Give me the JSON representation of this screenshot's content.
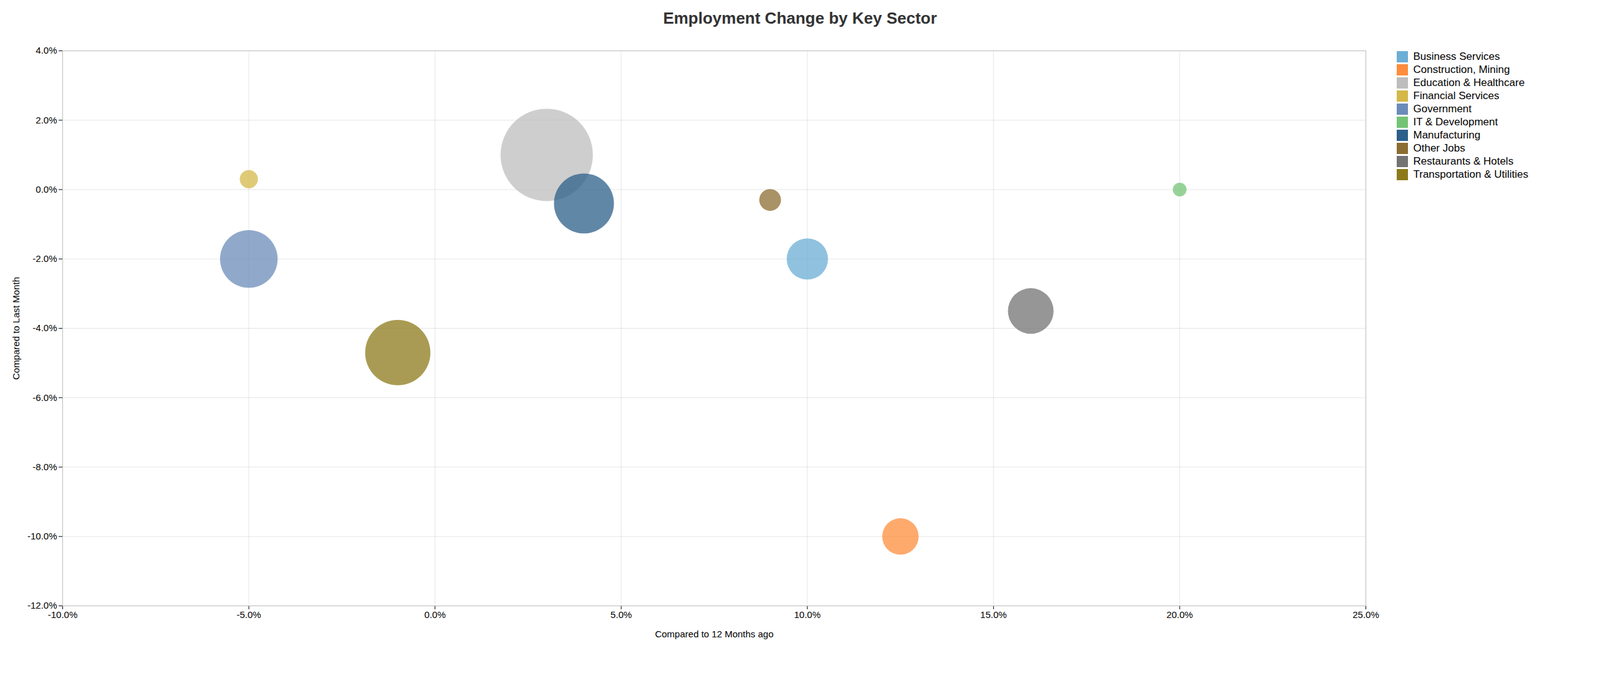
{
  "chart_data": {
    "type": "scatter",
    "title": "Employment Change by Key Sector",
    "xlabel": "Compared to 12 Months ago",
    "ylabel": "Compared to Last Month",
    "xlim": [
      -0.1,
      0.25
    ],
    "ylim": [
      -0.12,
      0.04
    ],
    "xticks": [
      {
        "value": -0.1,
        "label": "-10.0%"
      },
      {
        "value": -0.05,
        "label": "-5.0%"
      },
      {
        "value": 0.0,
        "label": "0.0%"
      },
      {
        "value": 0.05,
        "label": "5.0%"
      },
      {
        "value": 0.1,
        "label": "10.0%"
      },
      {
        "value": 0.15,
        "label": "15.0%"
      },
      {
        "value": 0.2,
        "label": "20.0%"
      },
      {
        "value": 0.25,
        "label": "25.0%"
      }
    ],
    "yticks": [
      {
        "value": -0.12,
        "label": "-12.0%"
      },
      {
        "value": -0.1,
        "label": "-10.0%"
      },
      {
        "value": -0.08,
        "label": "-8.0%"
      },
      {
        "value": -0.06,
        "label": "-6.0%"
      },
      {
        "value": -0.04,
        "label": "-4.0%"
      },
      {
        "value": -0.02,
        "label": "-2.0%"
      },
      {
        "value": 0.0,
        "label": "0.0%"
      },
      {
        "value": 0.02,
        "label": "2.0%"
      },
      {
        "value": 0.04,
        "label": "4.0%"
      }
    ],
    "grid": true,
    "legend": "right",
    "series": [
      {
        "name": "Business Services",
        "color": "#6baed6",
        "x": [
          0.1
        ],
        "y": [
          -0.02
        ],
        "size": [
          1800
        ]
      },
      {
        "name": "Construction, Mining",
        "color": "#fd8d3c",
        "x": [
          0.125
        ],
        "y": [
          -0.1
        ],
        "size": [
          1400
        ]
      },
      {
        "name": "Education & Healthcare",
        "color": "#bdbdbd",
        "x": [
          0.03
        ],
        "y": [
          0.01
        ],
        "size": [
          9000
        ]
      },
      {
        "name": "Financial Services",
        "color": "#d4b84a",
        "x": [
          -0.05
        ],
        "y": [
          0.003
        ],
        "size": [
          350
        ]
      },
      {
        "name": "Government",
        "color": "#6b8cba",
        "x": [
          -0.05
        ],
        "y": [
          -0.02
        ],
        "size": [
          3500
        ]
      },
      {
        "name": "IT & Development",
        "color": "#74c476",
        "x": [
          0.2
        ],
        "y": [
          0.0
        ],
        "size": [
          200
        ]
      },
      {
        "name": "Manufacturing",
        "color": "#2c5f8a",
        "x": [
          0.04
        ],
        "y": [
          -0.004
        ],
        "size": [
          3800
        ]
      },
      {
        "name": "Other Jobs",
        "color": "#8c6d31",
        "x": [
          0.09
        ],
        "y": [
          -0.003
        ],
        "size": [
          500
        ]
      },
      {
        "name": "Restaurants & Hotels",
        "color": "#737373",
        "x": [
          0.16
        ],
        "y": [
          -0.035
        ],
        "size": [
          2200
        ]
      },
      {
        "name": "Transportation & Utilities",
        "color": "#8c7a1a",
        "x": [
          -0.01
        ],
        "y": [
          -0.047
        ],
        "size": [
          4500
        ]
      }
    ]
  }
}
